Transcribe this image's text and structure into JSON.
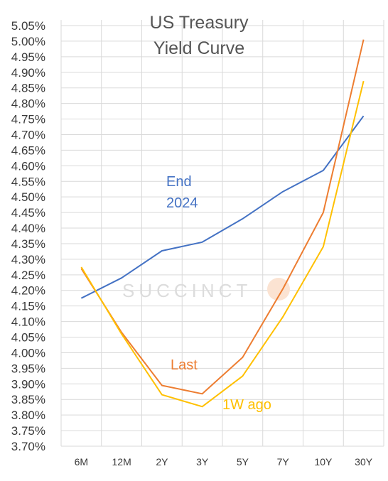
{
  "chart_data": {
    "type": "line",
    "title": [
      "US Treasury",
      "Yield Curve"
    ],
    "categories": [
      "6M",
      "12M",
      "2Y",
      "3Y",
      "5Y",
      "7Y",
      "10Y",
      "30Y"
    ],
    "ylim": [
      3.7,
      5.05
    ],
    "ytick_step": 0.05,
    "grid": true,
    "legend": "inline labels",
    "series": [
      {
        "name": "End 2024",
        "label_lines": [
          "End",
          "2024"
        ],
        "color": "#4472C4",
        "values": [
          4.175,
          4.24,
          4.327,
          4.355,
          4.43,
          4.517,
          4.585,
          4.76
        ]
      },
      {
        "name": "Last",
        "label_lines": [
          "Last"
        ],
        "color": "#ED7D31",
        "values": [
          4.27,
          4.065,
          3.895,
          3.868,
          3.985,
          4.205,
          4.45,
          5.005
        ]
      },
      {
        "name": "1W ago",
        "label_lines": [
          "1W ago"
        ],
        "color": "#FFC000",
        "values": [
          4.275,
          4.06,
          3.865,
          3.827,
          3.925,
          4.115,
          4.34,
          4.872
        ]
      }
    ],
    "watermark": "SUCCINCT"
  }
}
